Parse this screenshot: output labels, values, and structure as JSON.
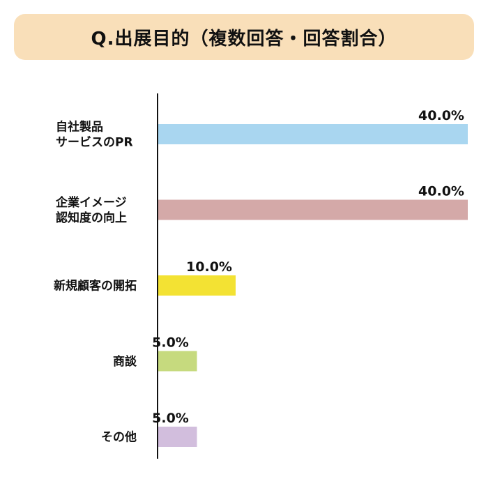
{
  "title": "Q.出展目的（複数回答・回答割合）",
  "chart_data": {
    "type": "bar",
    "orientation": "horizontal",
    "title": "Q.出展目的（複数回答・回答割合）",
    "unit": "%",
    "xlim": [
      0,
      40
    ],
    "grid": false,
    "categories": [
      [
        "自社製品",
        "サービスのPR"
      ],
      [
        "企業イメージ",
        "認知度の向上"
      ],
      [
        "新規顧客の開拓"
      ],
      [
        "商談"
      ],
      [
        "その他"
      ]
    ],
    "values": [
      40.0,
      40.0,
      10.0,
      5.0,
      5.0
    ],
    "labels": [
      "40.0%",
      "40.0%",
      "10.0%",
      "5.0%",
      "5.0%"
    ],
    "colors": [
      "#a9d6f0",
      "#d4a9a8",
      "#f3e233",
      "#c6da7e",
      "#d2bedd"
    ]
  }
}
